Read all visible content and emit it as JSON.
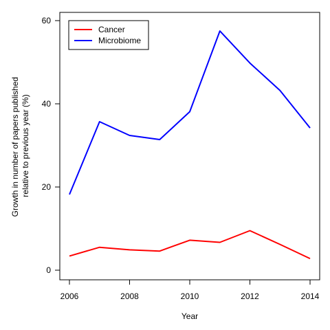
{
  "chart_data": {
    "type": "line",
    "title": "",
    "xlabel": "Year",
    "ylabel_lines": [
      "Growth in number of papers published",
      "relative to previous year (%)"
    ],
    "x": [
      2006,
      2007,
      2008,
      2009,
      2010,
      2011,
      2012,
      2013,
      2014
    ],
    "xlim": [
      2006,
      2014
    ],
    "ylim": [
      0,
      60
    ],
    "xticks": [
      2006,
      2008,
      2010,
      2012,
      2014
    ],
    "yticks": [
      0,
      20,
      40,
      60
    ],
    "grid": false,
    "legend_position": "top-left",
    "series": [
      {
        "name": "Cancer",
        "color": "#ff0000",
        "values": [
          3.4,
          5.5,
          4.9,
          4.6,
          7.2,
          6.7,
          9.5,
          6.2,
          2.8
        ]
      },
      {
        "name": "Microbiome",
        "color": "#0000ff",
        "values": [
          18.2,
          35.7,
          32.4,
          31.4,
          38.1,
          57.5,
          49.8,
          43.2,
          34.2
        ]
      }
    ]
  }
}
